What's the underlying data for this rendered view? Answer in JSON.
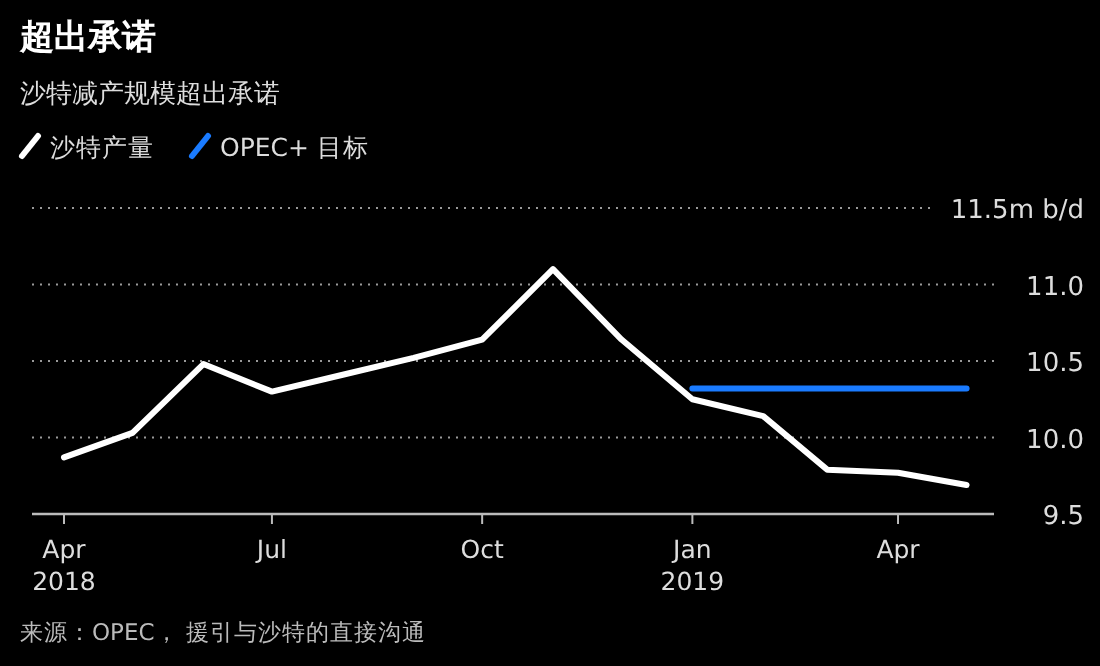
{
  "chart_data": {
    "type": "line",
    "title": "超出承诺",
    "subtitle": "沙特减产规模超出承诺",
    "series": [
      {
        "name": "沙特产量",
        "color": "#ffffff",
        "x": [
          "2018-04",
          "2018-05",
          "2018-06",
          "2018-07",
          "2018-08",
          "2018-09",
          "2018-10",
          "2018-11",
          "2018-12",
          "2019-01",
          "2019-02",
          "2019-03",
          "2019-04",
          "2019-05"
        ],
        "values": [
          9.87,
          10.03,
          10.48,
          10.3,
          10.41,
          10.52,
          10.64,
          11.1,
          10.64,
          10.25,
          10.14,
          9.79,
          9.77,
          9.69
        ]
      },
      {
        "name": "OPEC+ 目标",
        "color": "#1a7bff",
        "x": [
          "2019-01",
          "2019-02",
          "2019-03",
          "2019-04",
          "2019-05"
        ],
        "values": [
          10.32,
          10.32,
          10.32,
          10.32,
          10.32
        ]
      }
    ],
    "xlim": [
      "2018-03-18",
      "2019-05-13"
    ],
    "xticks": [
      {
        "value": "2018-04",
        "label": "Apr\n2018"
      },
      {
        "value": "2018-07",
        "label": "Jul"
      },
      {
        "value": "2018-10",
        "label": "Oct"
      },
      {
        "value": "2019-01",
        "label": "Jan\n2019"
      },
      {
        "value": "2019-04",
        "label": "Apr"
      }
    ],
    "ylim": [
      9.5,
      11.5
    ],
    "yticks": [
      9.5,
      {
        "value": 10,
        "label": "10.0"
      },
      10.5,
      {
        "value": 11,
        "label": "11.0"
      },
      {
        "value": 11.5,
        "label": "11.5m b/d"
      }
    ],
    "grid": "y",
    "legend": "top left",
    "line_style": "solid",
    "marker": "none",
    "annotations": [
      "来源：OPEC， 援引与沙特的直接沟通"
    ]
  }
}
